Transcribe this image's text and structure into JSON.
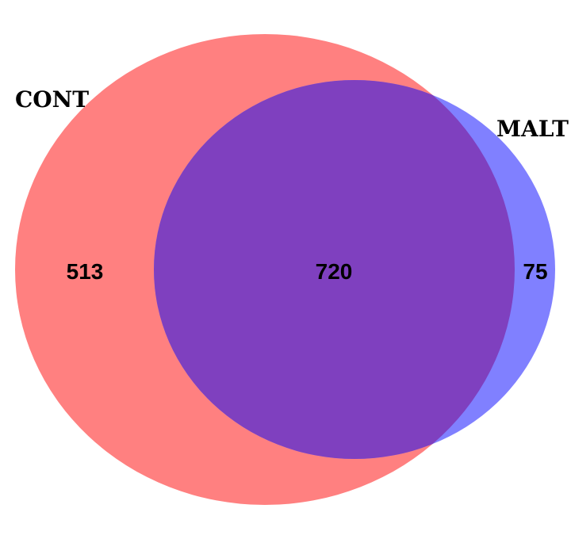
{
  "venn": {
    "sets": [
      {
        "name": "CONT",
        "color": "#ff8080"
      },
      {
        "name": "MALT",
        "color": "#8080ff"
      }
    ],
    "overlap_color": "#7f40bf",
    "regions": {
      "cont_only": "513",
      "both": "720",
      "malt_only": "75"
    }
  }
}
